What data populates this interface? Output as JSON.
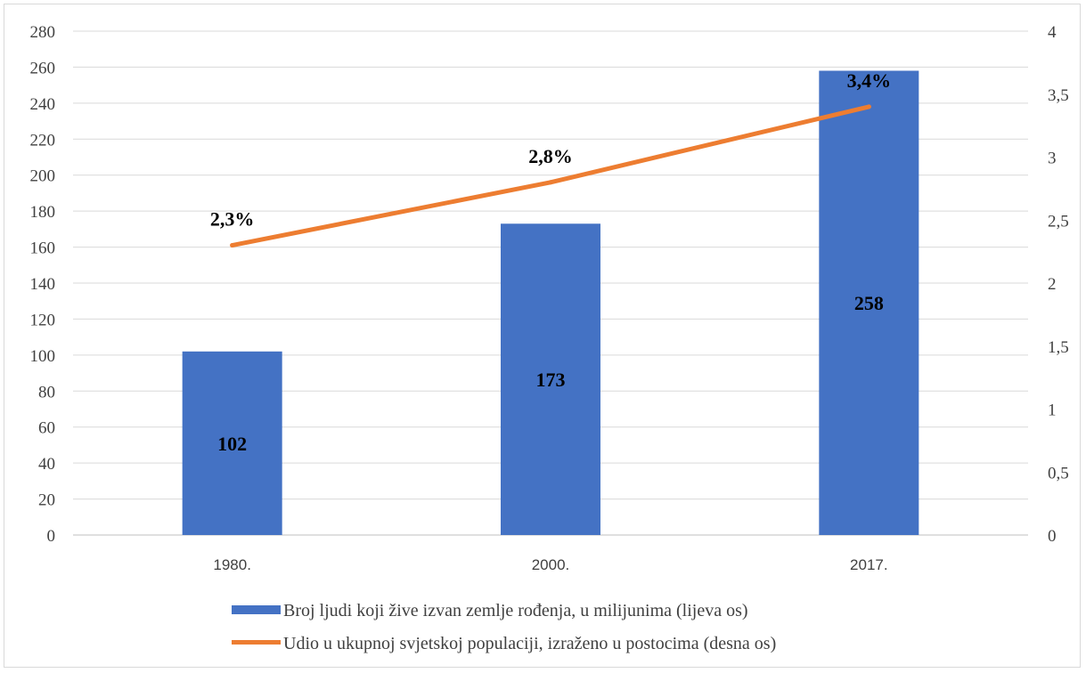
{
  "chart_data": {
    "type": "bar",
    "categories": [
      "1980.",
      "2000.",
      "2017."
    ],
    "series": [
      {
        "name": "Broj ljudi koji žive izvan zemlje rođenja, u milijunima (lijeva os)",
        "type": "bar",
        "axis": "left",
        "values": [
          102,
          173,
          258
        ],
        "labels": [
          "102",
          "173",
          "258"
        ],
        "color": "#4472C4"
      },
      {
        "name": "Udio u ukupnoj svjetskoj populaciji, izraženo u postocima (desna os)",
        "type": "line",
        "axis": "right",
        "values": [
          2.3,
          2.8,
          3.4
        ],
        "labels": [
          "2,3%",
          "2,8%",
          "3,4%"
        ],
        "color": "#ED7D31"
      }
    ],
    "y_left": {
      "ylim": [
        0,
        280
      ],
      "ticks": [
        0,
        20,
        40,
        60,
        80,
        100,
        120,
        140,
        160,
        180,
        200,
        220,
        240,
        260,
        280
      ],
      "tick_labels": [
        "0",
        "20",
        "40",
        "60",
        "80",
        "100",
        "120",
        "140",
        "160",
        "180",
        "200",
        "220",
        "240",
        "260",
        "280"
      ]
    },
    "y_right": {
      "ylim": [
        0,
        4
      ],
      "ticks": [
        0,
        0.5,
        1,
        1.5,
        2,
        2.5,
        3,
        3.5,
        4
      ],
      "tick_labels": [
        "0",
        "0,5",
        "1",
        "1,5",
        "2",
        "2,5",
        "3",
        "3,5",
        "4"
      ]
    },
    "grid": true,
    "legend_position": "bottom"
  }
}
